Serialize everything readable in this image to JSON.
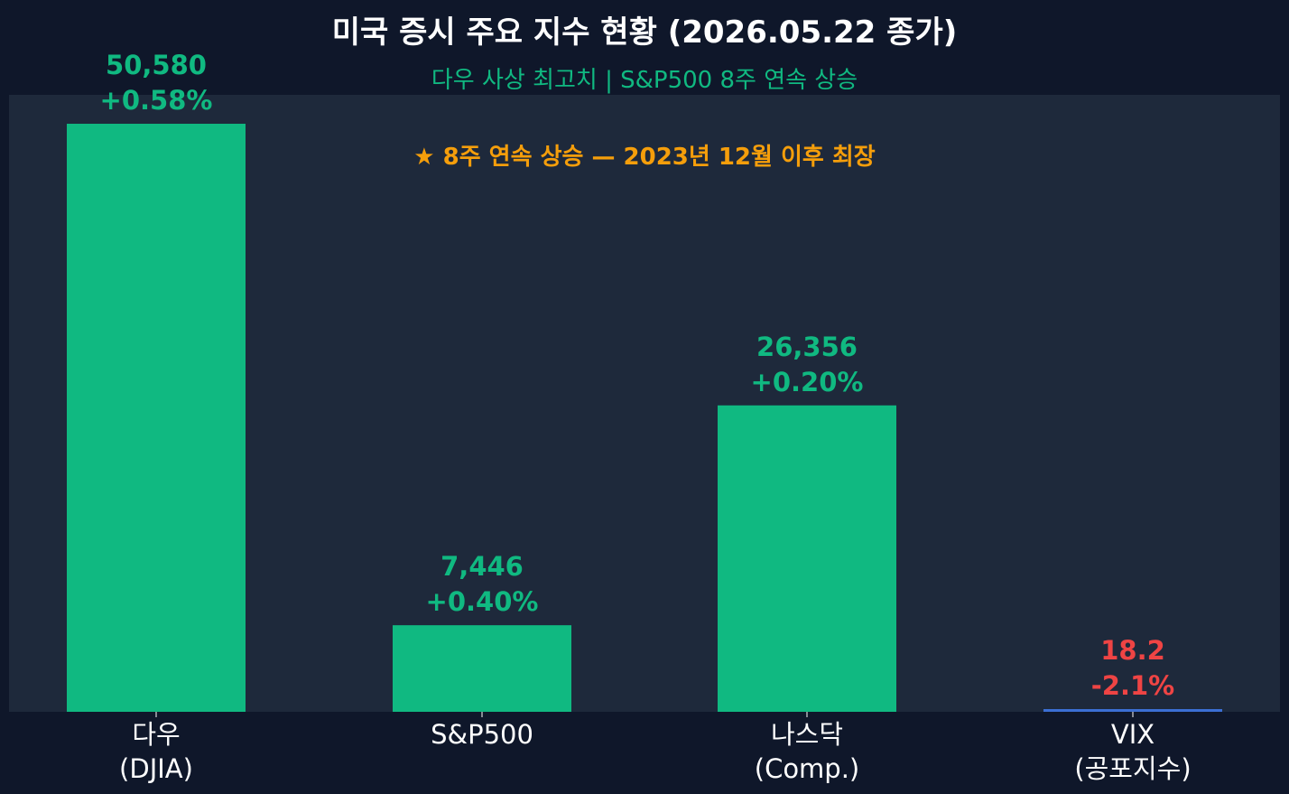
{
  "chart_data": {
    "type": "bar",
    "title": "미국 증시 주요 지수 현황 (2026.05.22 종가)",
    "subtitle": "다우 사상 최고치 | S&P500 8주 연속 상승",
    "annotation": "★ 8주 연속 상승 — 2023년 12월 이후 최장",
    "categories": [
      [
        "다우",
        "(DJIA)"
      ],
      [
        "S&P500"
      ],
      [
        "나스닥",
        "(Comp.)"
      ],
      [
        "VIX",
        "(공포지수)"
      ]
    ],
    "values": [
      50580,
      7446,
      26356,
      18.2
    ],
    "value_labels": [
      "50,580",
      "7,446",
      "26,356",
      "18.2"
    ],
    "change_labels": [
      "+0.58%",
      "+0.40%",
      "+0.20%",
      "-2.1%"
    ],
    "ylim": [
      0,
      52000
    ],
    "grid": false,
    "colors": {
      "background": "#0f172a",
      "plot_background": "#1e293b",
      "up": "#10b981",
      "down": "#ef4444",
      "vix_bar": "#3b6fd4",
      "annotation": "#f59e0b",
      "text": "#ffffff"
    }
  }
}
